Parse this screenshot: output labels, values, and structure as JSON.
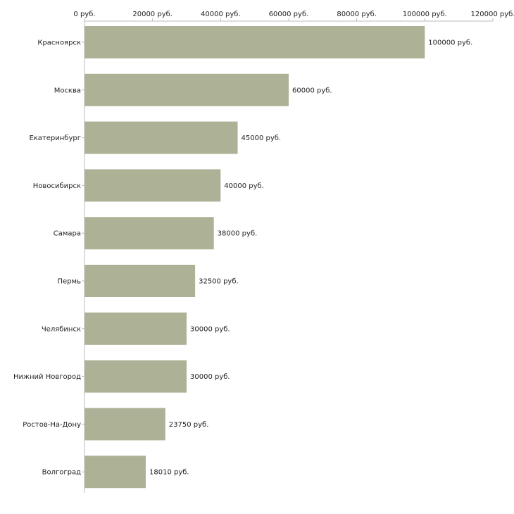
{
  "chart_data": {
    "type": "bar",
    "orientation": "horizontal",
    "title": "",
    "xlabel": "",
    "ylabel": "",
    "xlim": [
      0,
      120000
    ],
    "x_ticks": [
      0,
      20000,
      40000,
      60000,
      80000,
      100000,
      120000
    ],
    "x_tick_labels": [
      "0 руб.",
      "20000 руб.",
      "40000 руб.",
      "60000 руб.",
      "80000 руб.",
      "100000 руб.",
      "120000 руб."
    ],
    "axis_position": "top",
    "grid": false,
    "legend": "none",
    "bar_color": "#adb296",
    "categories": [
      "Красноярск",
      "Москва",
      "Екатеринбург",
      "Новосибирск",
      "Самара",
      "Пермь",
      "Челябинск",
      "Нижний Новгород",
      "Ростов-На-Дону",
      "Волгоград"
    ],
    "values": [
      100000,
      60000,
      45000,
      40000,
      38000,
      32500,
      30000,
      30000,
      23750,
      18010
    ],
    "data_labels": [
      "100000 руб.",
      "60000 руб.",
      "45000 руб.",
      "40000 руб.",
      "38000 руб.",
      "32500 руб.",
      "30000 руб.",
      "30000 руб.",
      "23750 руб.",
      "18010 руб."
    ]
  }
}
